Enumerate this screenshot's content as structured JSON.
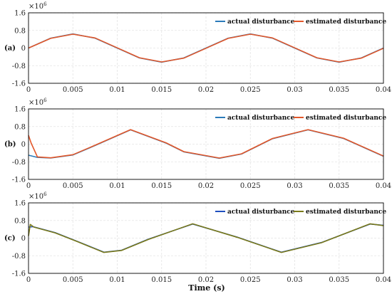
{
  "figure": {
    "xlabel": "Time (s)"
  },
  "chart_data": [
    {
      "type": "line",
      "panel_label": "(a)",
      "multiplier": "×10",
      "multiplier_exp": "6",
      "xlim": [
        0,
        0.04
      ],
      "ylim": [
        -1.6,
        1.6
      ],
      "xticks": [
        "0",
        "0.005",
        "0.01",
        "0.015",
        "0.02",
        "0.025",
        "0.03",
        "0.035",
        "0.04"
      ],
      "yticks": [
        "1.6",
        "0.8",
        "0",
        "-0.8",
        "-1.6"
      ],
      "grid": true,
      "legend": "top-right",
      "series": [
        {
          "name": "actual disturbance",
          "color": "#2b7bba",
          "x": [
            0,
            0.0025,
            0.005,
            0.0075,
            0.01,
            0.0125,
            0.015,
            0.0175,
            0.02,
            0.0225,
            0.025,
            0.0275,
            0.03,
            0.0325,
            0.035,
            0.0375,
            0.04
          ],
          "y": [
            0,
            0.45,
            0.64,
            0.45,
            0,
            -0.45,
            -0.64,
            -0.45,
            0,
            0.45,
            0.64,
            0.45,
            0,
            -0.45,
            -0.64,
            -0.45,
            0
          ]
        },
        {
          "name": "estimated disturbance",
          "color": "#e2572a",
          "x": [
            0,
            0.0025,
            0.005,
            0.0075,
            0.01,
            0.0125,
            0.015,
            0.0175,
            0.02,
            0.0225,
            0.025,
            0.0275,
            0.03,
            0.0325,
            0.035,
            0.0375,
            0.04
          ],
          "y": [
            0,
            0.44,
            0.63,
            0.46,
            0.01,
            -0.44,
            -0.63,
            -0.46,
            -0.01,
            0.44,
            0.63,
            0.46,
            0.01,
            -0.44,
            -0.63,
            -0.46,
            -0.01
          ]
        }
      ]
    },
    {
      "type": "line",
      "panel_label": "(b)",
      "multiplier": "×10",
      "multiplier_exp": "6",
      "xlim": [
        0,
        0.04
      ],
      "ylim": [
        -1.6,
        1.6
      ],
      "xticks": [
        "0",
        "0.005",
        "0.01",
        "0.015",
        "0.02",
        "0.025",
        "0.03",
        "0.035",
        "0.04"
      ],
      "yticks": [
        "1.6",
        "0.8",
        "0",
        "-0.8",
        "-1.6"
      ],
      "grid": true,
      "legend": "top-right",
      "series": [
        {
          "name": "actual disturbance",
          "color": "#2b7bba",
          "x": [
            0,
            0.001,
            0.0025,
            0.005,
            0.0075,
            0.0115,
            0.0155,
            0.0175,
            0.0215,
            0.024,
            0.0275,
            0.0315,
            0.0355,
            0.04
          ],
          "y": [
            -0.5,
            -0.6,
            -0.63,
            -0.49,
            -0.06,
            0.65,
            0.05,
            -0.35,
            -0.64,
            -0.45,
            0.25,
            0.65,
            0.26,
            -0.55
          ]
        },
        {
          "name": "estimated disturbance",
          "color": "#e2572a",
          "x": [
            0,
            0.0003,
            0.001,
            0.0025,
            0.005,
            0.0075,
            0.0115,
            0.0155,
            0.0175,
            0.0215,
            0.024,
            0.0275,
            0.0315,
            0.0355,
            0.04
          ],
          "y": [
            0.4,
            0.05,
            -0.58,
            -0.62,
            -0.48,
            -0.05,
            0.66,
            0.06,
            -0.34,
            -0.63,
            -0.44,
            0.26,
            0.66,
            0.27,
            -0.54
          ]
        }
      ]
    },
    {
      "type": "line",
      "panel_label": "(c)",
      "multiplier": "×10",
      "multiplier_exp": "6",
      "xlim": [
        0,
        0.04
      ],
      "ylim": [
        -1.6,
        1.6
      ],
      "xticks": [
        "0",
        "0.005",
        "0.01",
        "0.015",
        "0.02",
        "0.025",
        "0.03",
        "0.035",
        "0.04"
      ],
      "yticks": [
        "1.6",
        "0.8",
        "0",
        "-0.8",
        "-1.6"
      ],
      "grid": true,
      "legend": "top-right",
      "series": [
        {
          "name": "actual disturbance",
          "color": "#1f4fbf",
          "x": [
            0,
            0.0005,
            0.003,
            0.0055,
            0.0085,
            0.0105,
            0.0135,
            0.0185,
            0.0235,
            0.0285,
            0.033,
            0.0385,
            0.04
          ],
          "y": [
            0.5,
            0.52,
            0.25,
            -0.15,
            -0.64,
            -0.55,
            -0.05,
            0.64,
            0.05,
            -0.64,
            -0.2,
            0.64,
            0.58
          ]
        },
        {
          "name": "estimated disturbance",
          "color": "#7a7a1a",
          "x": [
            0,
            0.0002,
            0.0006,
            0.003,
            0.0055,
            0.0085,
            0.0105,
            0.0135,
            0.0185,
            0.0235,
            0.0285,
            0.033,
            0.0385,
            0.04
          ],
          "y": [
            0.1,
            0.62,
            0.5,
            0.24,
            -0.16,
            -0.65,
            -0.56,
            -0.06,
            0.65,
            0.04,
            -0.65,
            -0.21,
            0.65,
            0.57
          ]
        }
      ]
    }
  ]
}
